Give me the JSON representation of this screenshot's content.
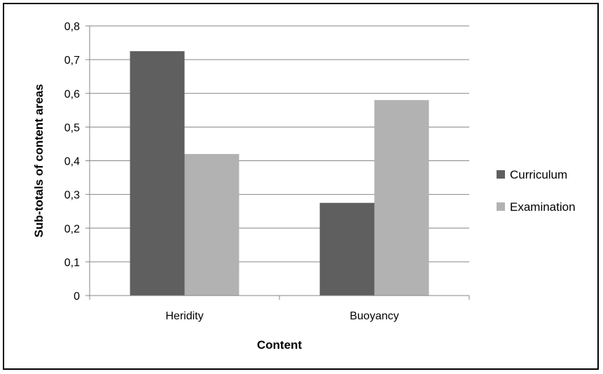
{
  "chart_data": {
    "type": "bar",
    "title": "",
    "xlabel": "Content",
    "ylabel": "Sub-totals of content areas",
    "categories": [
      "Heridity",
      "Buoyancy"
    ],
    "series": [
      {
        "name": "Curriculum",
        "values": [
          0.725,
          0.275
        ],
        "color": "#5f5f5f"
      },
      {
        "name": "Examination",
        "values": [
          0.42,
          0.58
        ],
        "color": "#b2b2b2"
      }
    ],
    "ylim": [
      0,
      0.8
    ],
    "yticks": [
      0,
      0.1,
      0.2,
      0.3,
      0.4,
      0.5,
      0.6,
      0.7,
      0.8
    ],
    "ytick_labels": [
      "0",
      "0,1",
      "0,2",
      "0,3",
      "0,4",
      "0,5",
      "0,6",
      "0,7",
      "0,8"
    ],
    "grid": true,
    "legend_position": "right"
  }
}
